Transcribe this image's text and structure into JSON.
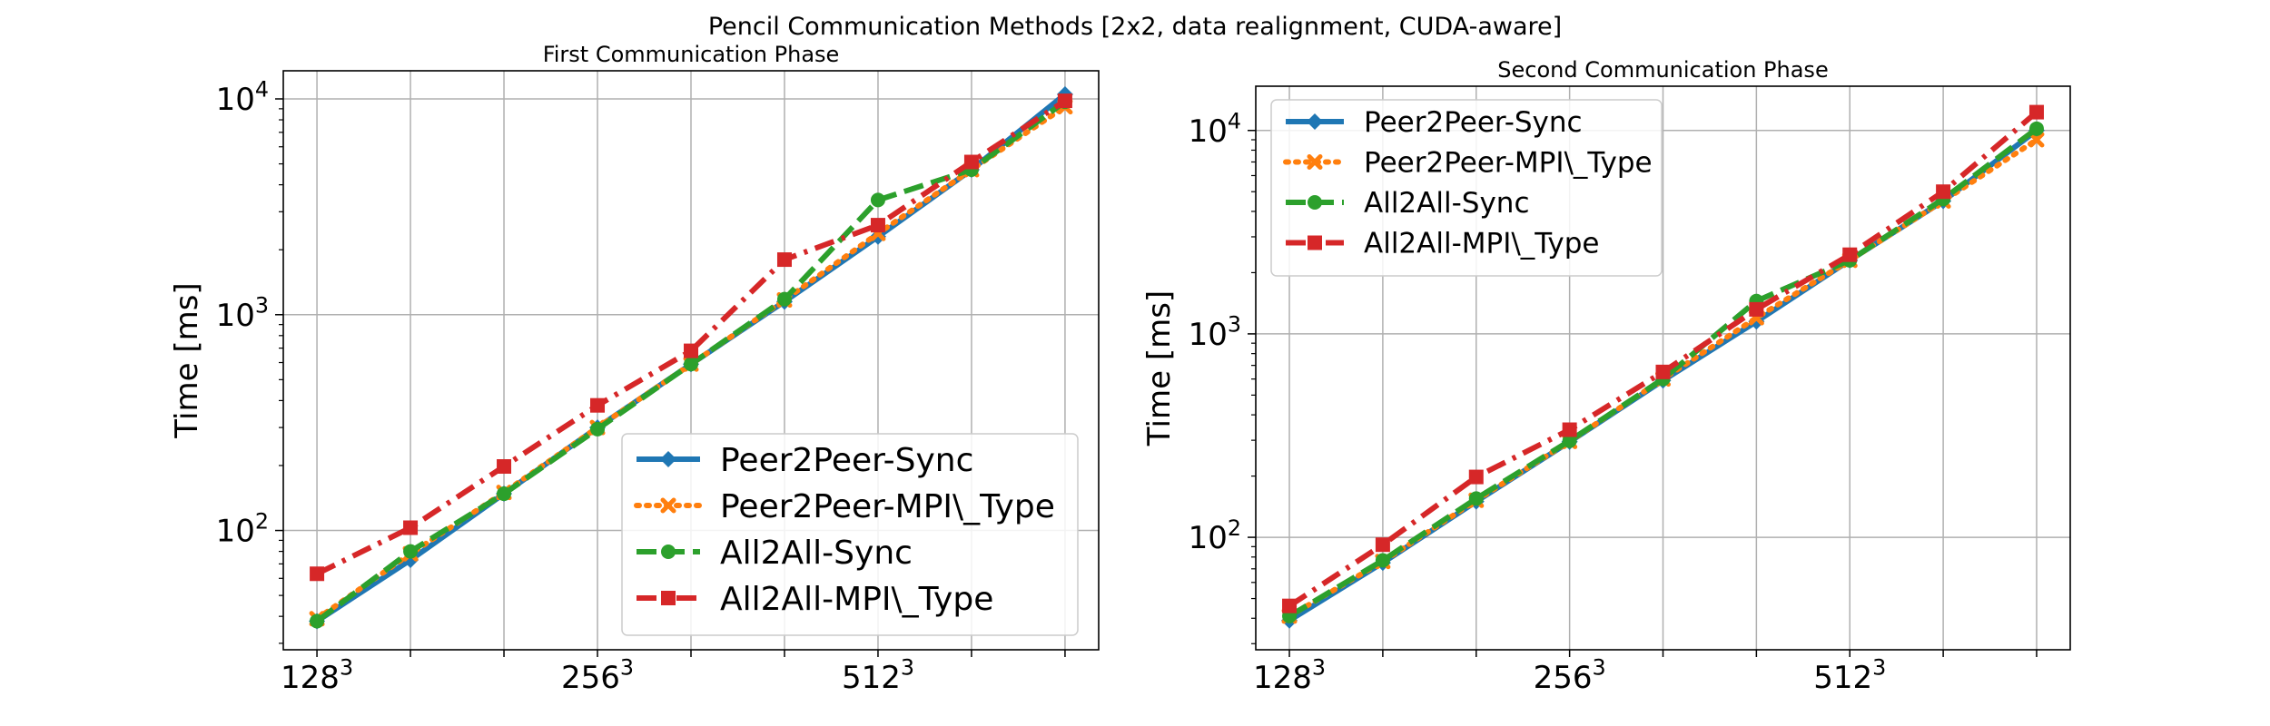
{
  "figure": {
    "suptitle": "Pencil Communication Methods [2x2, data realignment, CUDA-aware]"
  },
  "chart_data": [
    {
      "type": "line",
      "title": "First Communication Phase",
      "xlabel": "",
      "ylabel": "Time [ms]",
      "yscale": "log",
      "ylim": [
        28,
        13500
      ],
      "grid": true,
      "legend_position": "lower-right",
      "x": [
        0,
        1,
        2,
        3,
        4,
        5,
        6,
        7,
        8
      ],
      "x_tick_labels": [
        {
          "x": 0,
          "base": "128",
          "exp": "3"
        },
        {
          "x": 3,
          "base": "256",
          "exp": "3"
        },
        {
          "x": 6,
          "base": "512",
          "exp": "3"
        }
      ],
      "y_tick_labels": [
        {
          "value": 100,
          "base": "10",
          "exp": "2"
        },
        {
          "value": 1000,
          "base": "10",
          "exp": "3"
        },
        {
          "value": 10000,
          "base": "10",
          "exp": "4"
        }
      ],
      "series": [
        {
          "name": "Peer2Peer-Sync",
          "color": "#1f77b4",
          "dash": "solid",
          "marker": "diamond",
          "values": [
            38,
            73,
            148,
            300,
            590,
            1150,
            2300,
            4700,
            10500
          ]
        },
        {
          "name": "Peer2Peer-MPI\\_Type",
          "color": "#ff7f0e",
          "dash": "dotted",
          "marker": "x",
          "values": [
            39,
            78,
            150,
            300,
            590,
            1170,
            2380,
            4700,
            9200
          ]
        },
        {
          "name": "All2All-Sync",
          "color": "#2ca02c",
          "dash": "dashed",
          "marker": "circle",
          "values": [
            38,
            80,
            148,
            295,
            590,
            1180,
            3400,
            4700,
            9700
          ]
        },
        {
          "name": "All2All-MPI\\_Type",
          "color": "#d62728",
          "dash": "dashdot",
          "marker": "square",
          "values": [
            63,
            103,
            198,
            380,
            680,
            1800,
            2600,
            5100,
            9800
          ]
        }
      ]
    },
    {
      "type": "line",
      "title": "Second Communication Phase",
      "xlabel": "",
      "ylabel": "Time [ms]",
      "yscale": "log",
      "ylim": [
        28,
        16500
      ],
      "grid": true,
      "legend_position": "upper-left",
      "x": [
        0,
        1,
        2,
        3,
        4,
        5,
        6,
        7,
        8
      ],
      "x_tick_labels": [
        {
          "x": 0,
          "base": "128",
          "exp": "3"
        },
        {
          "x": 3,
          "base": "256",
          "exp": "3"
        },
        {
          "x": 6,
          "base": "512",
          "exp": "3"
        }
      ],
      "y_tick_labels": [
        {
          "value": 100,
          "base": "10",
          "exp": "2"
        },
        {
          "value": 1000,
          "base": "10",
          "exp": "3"
        },
        {
          "value": 10000,
          "base": "10",
          "exp": "4"
        }
      ],
      "series": [
        {
          "name": "Peer2Peer-Sync",
          "color": "#1f77b4",
          "dash": "solid",
          "marker": "diamond",
          "values": [
            39,
            75,
            150,
            295,
            590,
            1150,
            2300,
            4500,
            10000
          ]
        },
        {
          "name": "Peer2Peer-MPI\\_Type",
          "color": "#ff7f0e",
          "dash": "dotted",
          "marker": "x",
          "values": [
            41,
            76,
            152,
            296,
            600,
            1200,
            2300,
            4500,
            9000
          ]
        },
        {
          "name": "All2All-Sync",
          "color": "#2ca02c",
          "dash": "dashed",
          "marker": "circle",
          "values": [
            41,
            77,
            155,
            298,
            600,
            1450,
            2300,
            4600,
            10200
          ]
        },
        {
          "name": "All2All-MPI\\_Type",
          "color": "#d62728",
          "dash": "dashdot",
          "marker": "square",
          "values": [
            46,
            92,
            198,
            338,
            650,
            1320,
            2450,
            5000,
            12300
          ]
        }
      ]
    }
  ]
}
